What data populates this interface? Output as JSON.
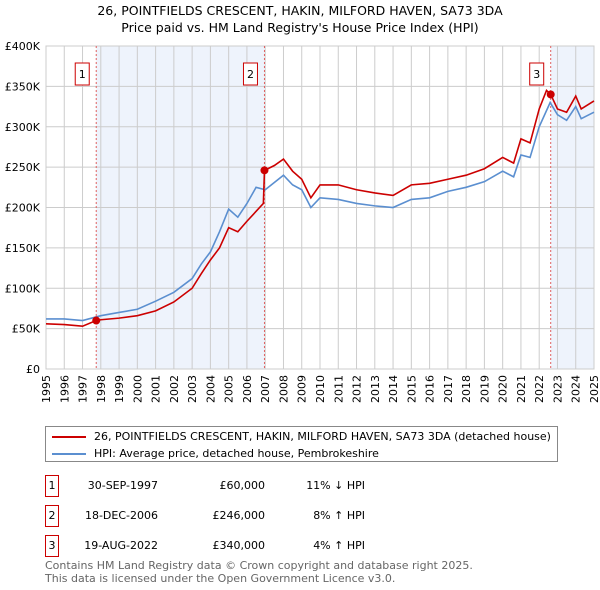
{
  "chart_data": {
    "type": "line",
    "title": "26, POINTFIELDS CRESCENT, HAKIN, MILFORD HAVEN, SA73 3DA",
    "subtitle": "Price paid vs. HM Land Registry's House Price Index (HPI)",
    "xlim": [
      1995,
      2025
    ],
    "ylim": [
      0,
      400000
    ],
    "y_ticks": [
      0,
      50000,
      100000,
      150000,
      200000,
      250000,
      300000,
      350000,
      400000
    ],
    "y_tick_labels": [
      "£0",
      "£50K",
      "£100K",
      "£150K",
      "£200K",
      "£250K",
      "£300K",
      "£350K",
      "£400K"
    ],
    "x_ticks": [
      "1995",
      "1996",
      "1997",
      "1998",
      "1999",
      "2000",
      "2001",
      "2002",
      "2003",
      "2004",
      "2005",
      "2006",
      "2007",
      "2008",
      "2009",
      "2010",
      "2011",
      "2012",
      "2013",
      "2014",
      "2015",
      "2016",
      "2017",
      "2018",
      "2019",
      "2020",
      "2021",
      "2022",
      "2023",
      "2024",
      "2025"
    ],
    "grid": true,
    "series": [
      {
        "name": "26, POINTFIELDS CRESCENT, HAKIN, MILFORD HAVEN, SA73 3DA (detached house)",
        "color": "#cc0000",
        "x": [
          1995,
          1996,
          1997,
          1997.75,
          1998,
          1999,
          2000,
          2001,
          2002,
          2003,
          2003.5,
          2004,
          2004.5,
          2005,
          2005.5,
          2006,
          2006.9,
          2006.96,
          2007.5,
          2008,
          2008.5,
          2009,
          2009.5,
          2010,
          2011,
          2012,
          2013,
          2014,
          2015,
          2016,
          2017,
          2018,
          2019,
          2020,
          2020.6,
          2021,
          2021.5,
          2022,
          2022.4,
          2022.63,
          2023,
          2023.5,
          2024,
          2024.3,
          2025
        ],
        "y": [
          56000,
          55000,
          53000,
          60000,
          61000,
          63000,
          66000,
          72000,
          83000,
          100000,
          118000,
          135000,
          150000,
          175000,
          170000,
          183000,
          205000,
          246000,
          252000,
          260000,
          245000,
          235000,
          212000,
          228000,
          228000,
          222000,
          218000,
          215000,
          228000,
          230000,
          235000,
          240000,
          248000,
          262000,
          255000,
          285000,
          280000,
          322000,
          345000,
          340000,
          322000,
          318000,
          338000,
          322000,
          332000
        ]
      },
      {
        "name": "HPI: Average price, detached house, Pembrokeshire",
        "color": "#5b8fd0",
        "x": [
          1995,
          1996,
          1997,
          1998,
          1999,
          2000,
          2001,
          2002,
          2003,
          2003.5,
          2004,
          2004.5,
          2005,
          2005.5,
          2006,
          2006.5,
          2007,
          2008,
          2008.5,
          2009,
          2009.5,
          2010,
          2011,
          2012,
          2013,
          2014,
          2015,
          2016,
          2017,
          2018,
          2019,
          2020,
          2020.6,
          2021,
          2021.5,
          2022,
          2022.6,
          2023,
          2023.5,
          2024,
          2024.3,
          2025
        ],
        "y": [
          62000,
          62000,
          60000,
          66000,
          70000,
          74000,
          84000,
          95000,
          112000,
          130000,
          145000,
          170000,
          198000,
          188000,
          205000,
          225000,
          222000,
          240000,
          228000,
          222000,
          200000,
          212000,
          210000,
          205000,
          202000,
          200000,
          210000,
          212000,
          220000,
          225000,
          232000,
          245000,
          238000,
          265000,
          262000,
          300000,
          330000,
          315000,
          308000,
          325000,
          310000,
          318000
        ]
      }
    ],
    "sales": [
      {
        "label": "1",
        "x": 1997.75,
        "y": 60000,
        "date": "30-SEP-1997",
        "price": "£60,000",
        "hpi": "11% ↓ HPI"
      },
      {
        "label": "2",
        "x": 2006.96,
        "y": 246000,
        "date": "18-DEC-2006",
        "price": "£246,000",
        "hpi": "8% ↑ HPI"
      },
      {
        "label": "3",
        "x": 2022.63,
        "y": 340000,
        "date": "19-AUG-2022",
        "price": "£340,000",
        "hpi": "4% ↑ HPI"
      }
    ],
    "shaded_ranges": [
      [
        1997.75,
        2006.96
      ],
      [
        2022.63,
        2025
      ]
    ]
  },
  "footer": {
    "line1": "Contains HM Land Registry data © Crown copyright and database right 2025.",
    "line2": "This data is licensed under the Open Government Licence v3.0."
  }
}
